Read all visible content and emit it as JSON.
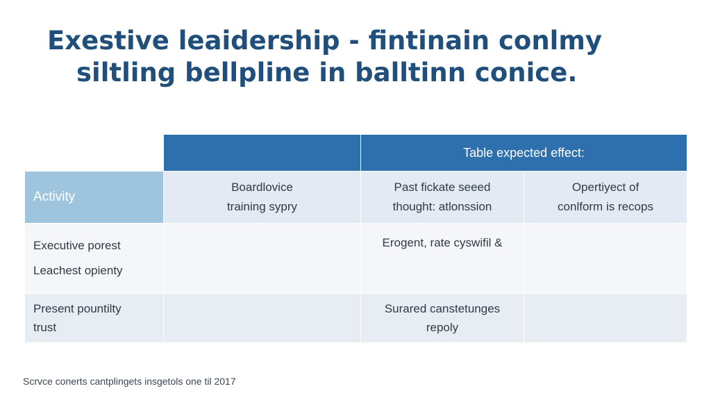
{
  "slide": {
    "title_line_1": "Exestive leaidership - fintinain conlmy",
    "title_line_2": "siltling bellpline in balltinn conice."
  },
  "table": {
    "header": "Table expected effect:",
    "activity_label": "Activity",
    "subheaders": [
      [
        "Boardlovice",
        "training sypry"
      ],
      [
        "Past fickate seeed",
        "thought: atlonssion"
      ],
      [
        "Opertiyect of",
        "conlform is recops"
      ]
    ],
    "rows": [
      {
        "label": [
          "Executive porest",
          "Leachest opienty"
        ],
        "cells": [
          [],
          [
            "Erogent, rate cyswifil &"
          ],
          []
        ]
      },
      {
        "label": [
          "Present pountilty",
          "trust"
        ],
        "cells": [
          [],
          [
            "Surared canstetunges",
            "repoly"
          ],
          []
        ]
      }
    ]
  },
  "footnote": "Scrvce conerts cantplingets insgetols one til 2017"
}
